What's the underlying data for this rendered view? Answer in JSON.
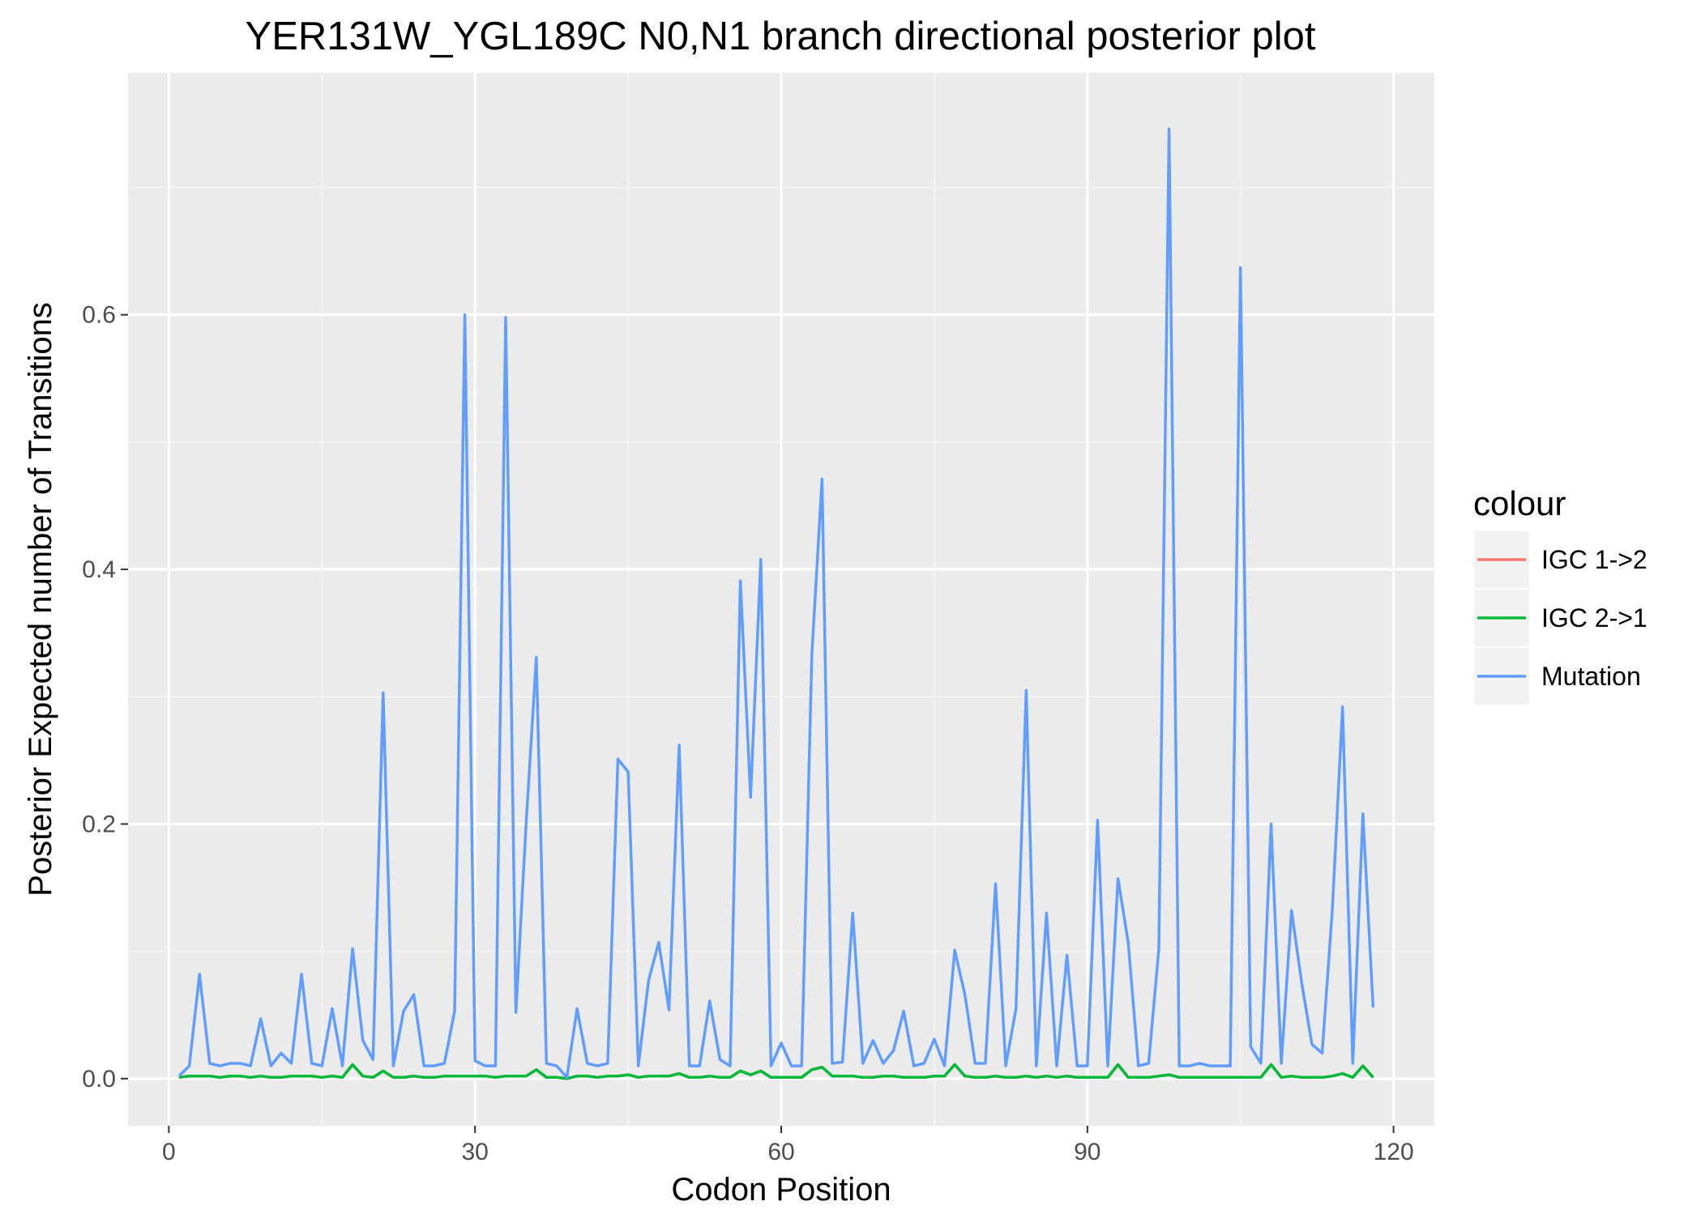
{
  "chart_data": {
    "type": "line",
    "title": "YER131W_YGL189C N0,N1 branch directional posterior plot",
    "xlabel": "Codon Position",
    "ylabel": "Posterior Expected number of Transitions",
    "xlim": [
      -4,
      124
    ],
    "ylim": [
      -0.037,
      0.79
    ],
    "x_ticks": [
      0,
      30,
      60,
      90,
      120
    ],
    "x_tick_labels": [
      "0",
      "30",
      "60",
      "90",
      "120"
    ],
    "y_ticks": [
      0.0,
      0.2,
      0.4,
      0.6
    ],
    "y_tick_labels": [
      "0.0",
      "0.2",
      "0.4",
      "0.6"
    ],
    "grid": true,
    "legend": {
      "title": "colour",
      "position": "right"
    },
    "x": [
      1,
      2,
      3,
      4,
      5,
      6,
      7,
      8,
      9,
      10,
      11,
      12,
      13,
      14,
      15,
      16,
      17,
      18,
      19,
      20,
      21,
      22,
      23,
      24,
      25,
      26,
      27,
      28,
      29,
      30,
      31,
      32,
      33,
      34,
      35,
      36,
      37,
      38,
      39,
      40,
      41,
      42,
      43,
      44,
      45,
      46,
      47,
      48,
      49,
      50,
      51,
      52,
      53,
      54,
      55,
      56,
      57,
      58,
      59,
      60,
      61,
      62,
      63,
      64,
      65,
      66,
      67,
      68,
      69,
      70,
      71,
      72,
      73,
      74,
      75,
      76,
      77,
      78,
      79,
      80,
      81,
      82,
      83,
      84,
      85,
      86,
      87,
      88,
      89,
      90,
      91,
      92,
      93,
      94,
      95,
      96,
      97,
      98,
      99,
      100,
      101,
      102,
      103,
      104,
      105,
      106,
      107,
      108,
      109,
      110,
      111,
      112,
      113,
      114,
      115,
      116,
      117,
      118
    ],
    "series": [
      {
        "name": "IGC 1->2",
        "color": "#F8766D",
        "values": [
          0.001,
          0.002,
          0.002,
          0.002,
          0.001,
          0.002,
          0.002,
          0.001,
          0.002,
          0.001,
          0.001,
          0.002,
          0.002,
          0.002,
          0.001,
          0.002,
          0.001,
          0.011,
          0.002,
          0.001,
          0.006,
          0.001,
          0.001,
          0.002,
          0.001,
          0.001,
          0.002,
          0.002,
          0.002,
          0.002,
          0.002,
          0.001,
          0.002,
          0.002,
          0.002,
          0.007,
          0.001,
          0.001,
          0.0,
          0.002,
          0.002,
          0.001,
          0.002,
          0.002,
          0.003,
          0.001,
          0.002,
          0.002,
          0.002,
          0.004,
          0.001,
          0.001,
          0.002,
          0.001,
          0.001,
          0.006,
          0.003,
          0.006,
          0.001,
          0.001,
          0.001,
          0.001,
          0.007,
          0.009,
          0.002,
          0.002,
          0.002,
          0.001,
          0.001,
          0.002,
          0.002,
          0.001,
          0.001,
          0.001,
          0.002,
          0.002,
          0.011,
          0.002,
          0.001,
          0.001,
          0.002,
          0.001,
          0.001,
          0.002,
          0.001,
          0.002,
          0.001,
          0.002,
          0.001,
          0.001,
          0.001,
          0.001,
          0.011,
          0.001,
          0.001,
          0.001,
          0.002,
          0.003,
          0.001,
          0.001,
          0.001,
          0.001,
          0.001,
          0.001,
          0.001,
          0.001,
          0.001,
          0.011,
          0.001,
          0.002,
          0.001,
          0.001,
          0.001,
          0.002,
          0.004,
          0.001,
          0.01,
          0.001
        ]
      },
      {
        "name": "IGC 2->1",
        "color": "#00BA38",
        "values": [
          0.001,
          0.002,
          0.002,
          0.002,
          0.001,
          0.002,
          0.002,
          0.001,
          0.002,
          0.001,
          0.001,
          0.002,
          0.002,
          0.002,
          0.001,
          0.002,
          0.001,
          0.011,
          0.002,
          0.001,
          0.006,
          0.001,
          0.001,
          0.002,
          0.001,
          0.001,
          0.002,
          0.002,
          0.002,
          0.002,
          0.002,
          0.001,
          0.002,
          0.002,
          0.002,
          0.007,
          0.001,
          0.001,
          0.0,
          0.002,
          0.002,
          0.001,
          0.002,
          0.002,
          0.003,
          0.001,
          0.002,
          0.002,
          0.002,
          0.004,
          0.001,
          0.001,
          0.002,
          0.001,
          0.001,
          0.006,
          0.003,
          0.006,
          0.001,
          0.001,
          0.001,
          0.001,
          0.007,
          0.009,
          0.002,
          0.002,
          0.002,
          0.001,
          0.001,
          0.002,
          0.002,
          0.001,
          0.001,
          0.001,
          0.002,
          0.002,
          0.011,
          0.002,
          0.001,
          0.001,
          0.002,
          0.001,
          0.001,
          0.002,
          0.001,
          0.002,
          0.001,
          0.002,
          0.001,
          0.001,
          0.001,
          0.001,
          0.011,
          0.001,
          0.001,
          0.001,
          0.002,
          0.003,
          0.001,
          0.001,
          0.001,
          0.001,
          0.001,
          0.001,
          0.001,
          0.001,
          0.001,
          0.011,
          0.001,
          0.002,
          0.001,
          0.001,
          0.001,
          0.002,
          0.004,
          0.001,
          0.01,
          0.001
        ]
      },
      {
        "name": "Mutation",
        "color": "#619CFF",
        "values": [
          0.002,
          0.01,
          0.082,
          0.012,
          0.01,
          0.012,
          0.012,
          0.01,
          0.047,
          0.01,
          0.02,
          0.012,
          0.082,
          0.012,
          0.01,
          0.055,
          0.01,
          0.102,
          0.03,
          0.015,
          0.303,
          0.01,
          0.053,
          0.066,
          0.01,
          0.01,
          0.012,
          0.053,
          0.6,
          0.014,
          0.01,
          0.01,
          0.598,
          0.052,
          0.2,
          0.331,
          0.012,
          0.01,
          0.001,
          0.055,
          0.012,
          0.01,
          0.012,
          0.251,
          0.241,
          0.01,
          0.077,
          0.107,
          0.054,
          0.262,
          0.01,
          0.01,
          0.061,
          0.015,
          0.01,
          0.391,
          0.221,
          0.408,
          0.01,
          0.028,
          0.01,
          0.01,
          0.333,
          0.471,
          0.012,
          0.013,
          0.13,
          0.012,
          0.03,
          0.012,
          0.022,
          0.053,
          0.01,
          0.012,
          0.031,
          0.01,
          0.101,
          0.066,
          0.012,
          0.012,
          0.153,
          0.01,
          0.055,
          0.305,
          0.01,
          0.13,
          0.01,
          0.097,
          0.01,
          0.01,
          0.203,
          0.01,
          0.157,
          0.107,
          0.01,
          0.012,
          0.102,
          0.746,
          0.01,
          0.01,
          0.012,
          0.01,
          0.01,
          0.01,
          0.637,
          0.025,
          0.012,
          0.2,
          0.012,
          0.132,
          0.075,
          0.027,
          0.02,
          0.133,
          0.292,
          0.012,
          0.208,
          0.056
        ]
      }
    ]
  }
}
